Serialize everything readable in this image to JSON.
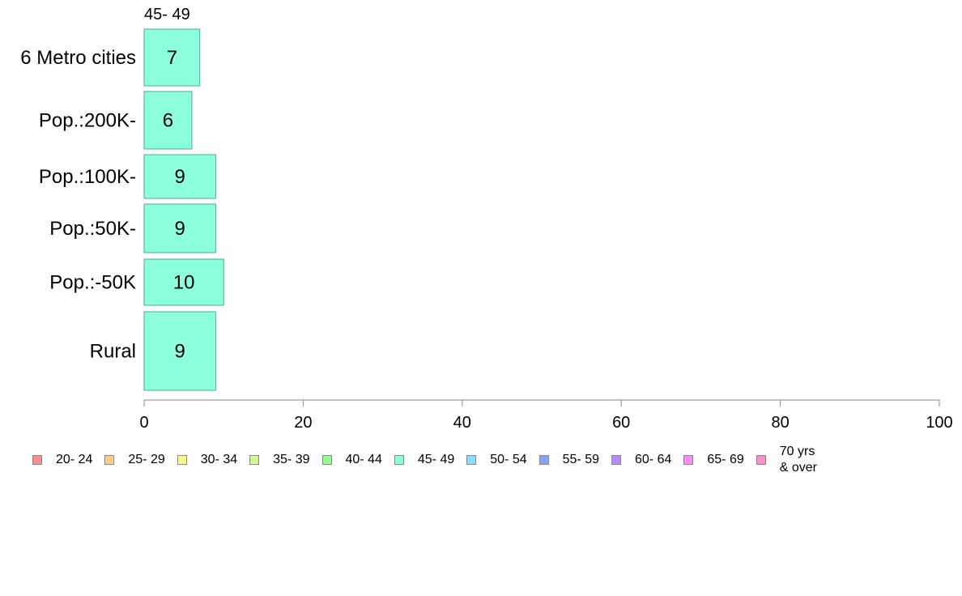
{
  "chart_data": {
    "type": "bar",
    "orientation": "horizontal",
    "series_title": "45- 49",
    "categories": [
      "6 Metro cities",
      "Pop.:200K-",
      "Pop.:100K-",
      "Pop.:50K-",
      "Pop.:-50K",
      "Rural"
    ],
    "values": [
      7,
      6,
      9,
      9,
      10,
      9
    ],
    "data_labels": [
      "7",
      "6",
      "9",
      "9",
      "10",
      "9"
    ],
    "bar_color": "#8cffdc",
    "bar_border_color": "#4cae8c",
    "xlim": [
      0,
      100
    ],
    "xticks": [
      "0",
      "20",
      "40",
      "60",
      "80",
      "100"
    ],
    "grid": false,
    "legend_position": "bottom",
    "legend": [
      {
        "label": "20- 24",
        "color": "#ff8c8c"
      },
      {
        "label": "25- 29",
        "color": "#ffcc8c"
      },
      {
        "label": "30- 34",
        "color": "#ffff8c"
      },
      {
        "label": "35- 39",
        "color": "#ccff8c"
      },
      {
        "label": "40- 44",
        "color": "#8cff8c"
      },
      {
        "label": "45- 49",
        "color": "#8cffdc"
      },
      {
        "label": "50- 54",
        "color": "#8cdcff"
      },
      {
        "label": "55- 59",
        "color": "#8ca0ff"
      },
      {
        "label": "60- 64",
        "color": "#b48cff"
      },
      {
        "label": "65- 69",
        "color": "#ff8cff"
      },
      {
        "label": "70 yrs\n& over",
        "color": "#ff8cc8"
      }
    ]
  }
}
